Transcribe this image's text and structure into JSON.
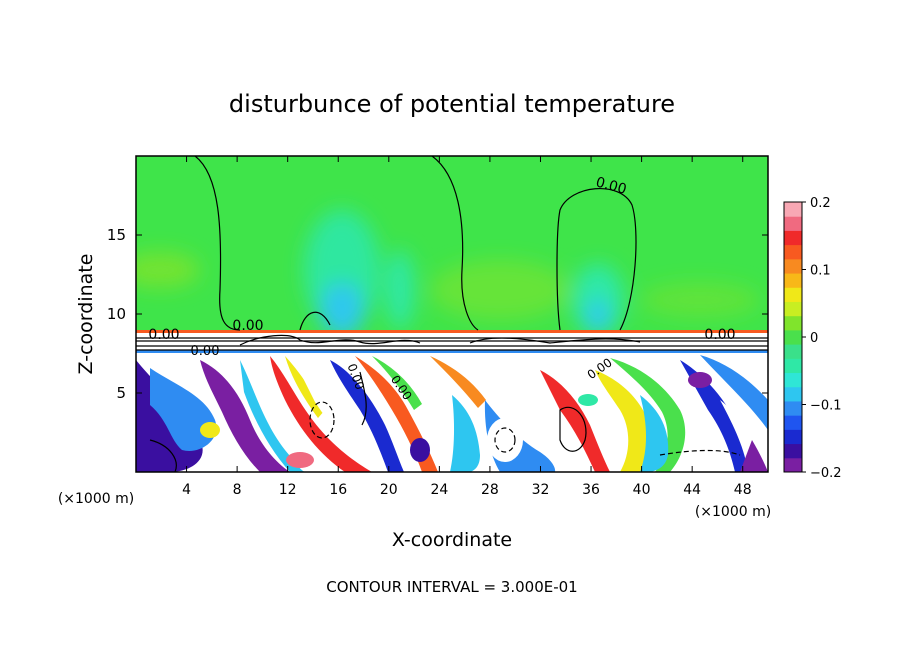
{
  "chart_data": {
    "type": "heatmap",
    "title": "disturbunce of potential temperature",
    "xlabel": "X-coordinate",
    "ylabel": "Z-coordinate",
    "x_unit_left": "(×1000 m)",
    "x_unit_right": "(×1000 m)",
    "xlim": [
      0,
      50
    ],
    "ylim": [
      0,
      20
    ],
    "x_ticks": [
      4,
      8,
      12,
      16,
      20,
      24,
      28,
      32,
      36,
      40,
      44,
      48
    ],
    "x_tick_labels": [
      "4",
      "8",
      "12",
      "16",
      "20",
      "24",
      "28",
      "32",
      "36",
      "40",
      "44",
      "48"
    ],
    "y_ticks": [
      5,
      10,
      15
    ],
    "y_tick_labels": [
      "5",
      "10",
      "15"
    ],
    "colorbar": {
      "range": [
        -0.2,
        0.2
      ],
      "ticks": [
        -0.2,
        -0.1,
        0,
        0.1,
        0.2
      ],
      "tick_labels": [
        "−0.2",
        "−0.1",
        "0",
        "0.1",
        "0.2"
      ],
      "colors": [
        "#7a1fa2",
        "#3a0fa0",
        "#1a2ad0",
        "#1f55f0",
        "#2f8cf2",
        "#2ec6f0",
        "#2fe6d6",
        "#2fe8a6",
        "#3ae08a",
        "#4ae04c",
        "#80e42c",
        "#c8ee22",
        "#f0e818",
        "#f8b818",
        "#f88a20",
        "#f85a20",
        "#f02a2a",
        "#f06a80",
        "#f8a8b4"
      ]
    },
    "contour_labels": [
      "0.00",
      "0.00",
      "0.00",
      "0.00",
      "0.00",
      "0.00",
      "0.00",
      "0.00"
    ],
    "footnote": "CONTOUR INTERVAL = 3.000E-01",
    "grid": false,
    "legend": "colorbar-right"
  }
}
